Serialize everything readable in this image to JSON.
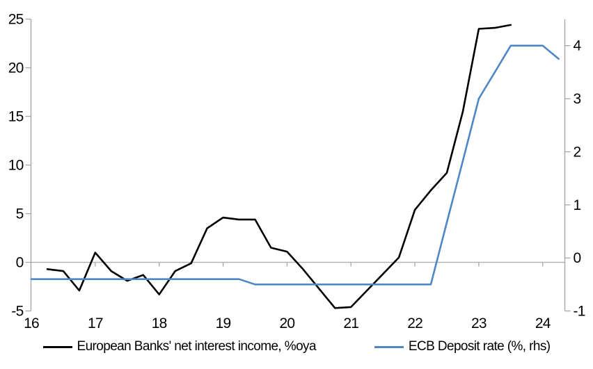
{
  "chart_data": {
    "type": "line",
    "title": "",
    "x_axis": {
      "min": 16,
      "max": 24.34,
      "tick_values": [
        16,
        17,
        18,
        19,
        20,
        21,
        22,
        23,
        24
      ],
      "tick_labels": [
        "16",
        "17",
        "18",
        "19",
        "20",
        "21",
        "22",
        "23",
        "24"
      ],
      "inner_tick_values": [
        17,
        18,
        19,
        20,
        21,
        22,
        23,
        24
      ]
    },
    "left_axis": {
      "min": -5,
      "max": 25,
      "tick_values": [
        -5,
        0,
        5,
        10,
        15,
        20,
        25
      ],
      "tick_labels": [
        "-5",
        "0",
        "5",
        "10",
        "15",
        "20",
        "25"
      ]
    },
    "right_axis": {
      "min": -1,
      "max": 4.5,
      "tick_values": [
        -1,
        0,
        1,
        2,
        3,
        4
      ],
      "tick_labels": [
        "-1",
        "0",
        "1",
        "2",
        "3",
        "4"
      ]
    },
    "grid": "zero-line-only",
    "legend_position": "bottom-center",
    "series": [
      {
        "name": "European Banks' net interest income, %oya",
        "axis": "left",
        "color": "#000000",
        "points": [
          [
            16.25,
            -0.7
          ],
          [
            16.5,
            -0.9
          ],
          [
            16.75,
            -2.9
          ],
          [
            17.0,
            1.0
          ],
          [
            17.25,
            -0.9
          ],
          [
            17.5,
            -1.9
          ],
          [
            17.75,
            -1.3
          ],
          [
            18.0,
            -3.3
          ],
          [
            18.25,
            -0.9
          ],
          [
            18.5,
            -0.1
          ],
          [
            18.75,
            3.5
          ],
          [
            19.0,
            4.6
          ],
          [
            19.25,
            4.4
          ],
          [
            19.5,
            4.4
          ],
          [
            19.75,
            1.5
          ],
          [
            20.0,
            1.1
          ],
          [
            20.25,
            -0.7
          ],
          [
            20.5,
            -2.7
          ],
          [
            20.75,
            -4.7
          ],
          [
            21.0,
            -4.6
          ],
          [
            21.25,
            -2.9
          ],
          [
            21.5,
            -1.2
          ],
          [
            21.75,
            0.5
          ],
          [
            22.0,
            5.4
          ],
          [
            22.25,
            7.4
          ],
          [
            22.5,
            9.2
          ],
          [
            22.75,
            15.5
          ],
          [
            23.0,
            24.0
          ],
          [
            23.25,
            24.1
          ],
          [
            23.5,
            24.4
          ]
        ]
      },
      {
        "name": "ECB Deposit rate (%, rhs)",
        "axis": "right",
        "color": "#4f86c6",
        "points": [
          [
            16.0,
            -0.4
          ],
          [
            16.25,
            -0.4
          ],
          [
            16.5,
            -0.4
          ],
          [
            16.75,
            -0.4
          ],
          [
            17.0,
            -0.4
          ],
          [
            17.25,
            -0.4
          ],
          [
            17.5,
            -0.4
          ],
          [
            17.75,
            -0.4
          ],
          [
            18.0,
            -0.4
          ],
          [
            18.25,
            -0.4
          ],
          [
            18.5,
            -0.4
          ],
          [
            18.75,
            -0.4
          ],
          [
            19.0,
            -0.4
          ],
          [
            19.25,
            -0.4
          ],
          [
            19.5,
            -0.5
          ],
          [
            19.75,
            -0.5
          ],
          [
            20.0,
            -0.5
          ],
          [
            20.25,
            -0.5
          ],
          [
            20.5,
            -0.5
          ],
          [
            20.75,
            -0.5
          ],
          [
            21.0,
            -0.5
          ],
          [
            21.25,
            -0.5
          ],
          [
            21.5,
            -0.5
          ],
          [
            21.75,
            -0.5
          ],
          [
            22.0,
            -0.5
          ],
          [
            22.25,
            -0.5
          ],
          [
            22.5,
            0.67
          ],
          [
            22.75,
            1.83
          ],
          [
            23.0,
            3.0
          ],
          [
            23.25,
            3.5
          ],
          [
            23.5,
            4.0
          ],
          [
            23.75,
            4.0
          ],
          [
            24.0,
            4.0
          ],
          [
            24.25,
            3.75
          ]
        ]
      }
    ]
  },
  "legend": {
    "series1_label": "European Banks' net interest income, %oya",
    "series2_label": "ECB Deposit rate (%, rhs)"
  },
  "colors": {
    "nii_line": "#000000",
    "deposit_rate_line": "#4f86c6",
    "axis_gray": "#a6a6a6",
    "zero_line_gray": "#b3b3b3",
    "text": "#000000",
    "background": "#ffffff"
  }
}
